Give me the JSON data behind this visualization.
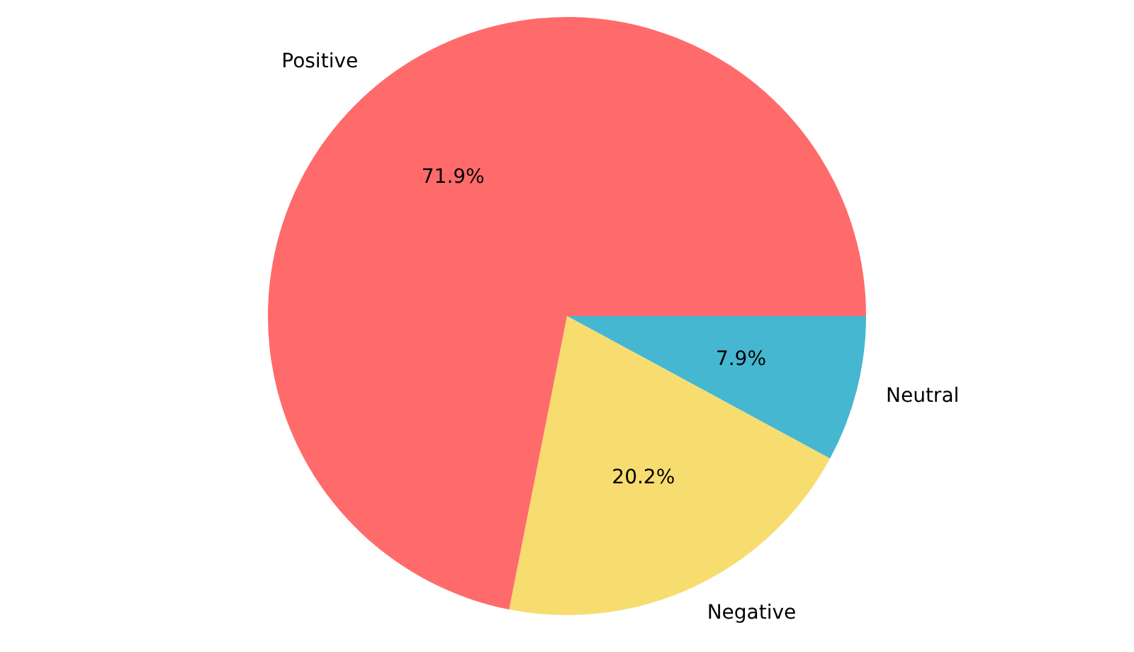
{
  "chart_data": {
    "type": "pie",
    "categories": [
      "Positive",
      "Negative",
      "Neutral"
    ],
    "values": [
      71.9,
      20.2,
      7.9
    ],
    "colors": [
      "#ff6b6b",
      "#f7dc6f",
      "#45b7d1"
    ],
    "value_labels": [
      "71.9%",
      "20.2%",
      "7.9%"
    ],
    "legend": false
  }
}
